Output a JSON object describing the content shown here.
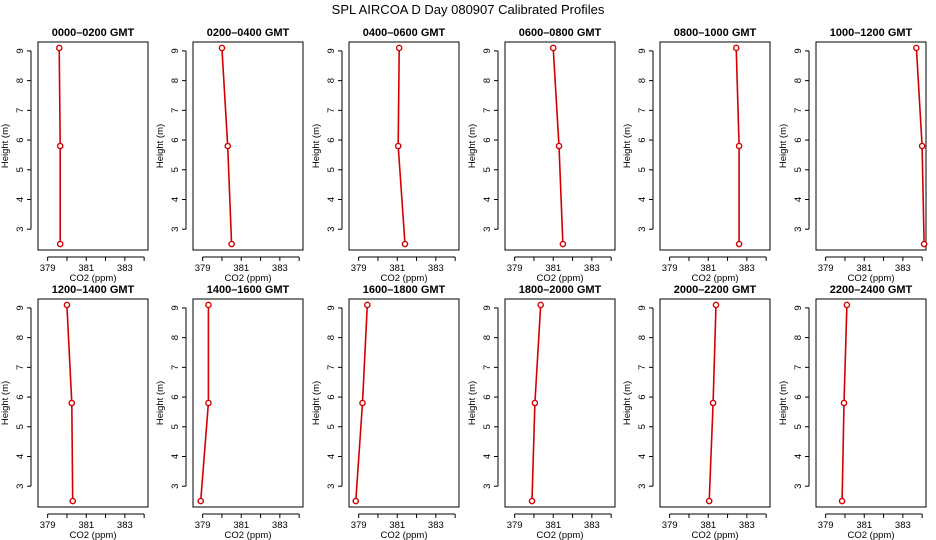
{
  "figure": {
    "title": "SPL AIRCOA D  Day 080907  Calibrated Profiles"
  },
  "colors": {
    "series": "#d40000",
    "axis": "#000000"
  },
  "chart_data": [
    {
      "type": "line",
      "title": "0000–0200 GMT",
      "xlabel": "CO2 (ppm)",
      "ylabel": "Height (m)",
      "x": [
        379.65,
        379.65,
        379.6
      ],
      "y": [
        2.5,
        5.8,
        9.1
      ]
    },
    {
      "type": "line",
      "title": "0200–0400 GMT",
      "xlabel": "CO2 (ppm)",
      "ylabel": "Height (m)",
      "x": [
        380.5,
        380.3,
        380.0
      ],
      "y": [
        2.5,
        5.8,
        9.1
      ]
    },
    {
      "type": "line",
      "title": "0400–0600 GMT",
      "xlabel": "CO2 (ppm)",
      "ylabel": "Height (m)",
      "x": [
        381.4,
        381.05,
        381.1
      ],
      "y": [
        2.5,
        5.8,
        9.1
      ]
    },
    {
      "type": "line",
      "title": "0600–0800 GMT",
      "xlabel": "CO2 (ppm)",
      "ylabel": "Height (m)",
      "x": [
        381.5,
        381.3,
        381.0
      ],
      "y": [
        2.5,
        5.8,
        9.1
      ]
    },
    {
      "type": "line",
      "title": "0800–1000 GMT",
      "xlabel": "CO2 (ppm)",
      "ylabel": "Height (m)",
      "x": [
        382.6,
        382.6,
        382.45
      ],
      "y": [
        2.5,
        5.8,
        9.1
      ]
    },
    {
      "type": "line",
      "title": "1000–1200 GMT",
      "xlabel": "CO2 (ppm)",
      "ylabel": "Height (m)",
      "x": [
        384.1,
        384.0,
        383.7
      ],
      "y": [
        2.5,
        5.8,
        9.1
      ]
    },
    {
      "type": "line",
      "title": "1200–1400 GMT",
      "xlabel": "CO2 (ppm)",
      "ylabel": "Height (m)",
      "x": [
        380.3,
        380.25,
        380.0
      ],
      "y": [
        2.5,
        5.8,
        9.1
      ]
    },
    {
      "type": "line",
      "title": "1400–1600 GMT",
      "xlabel": "CO2 (ppm)",
      "ylabel": "Height (m)",
      "x": [
        378.9,
        379.3,
        379.3
      ],
      "y": [
        2.5,
        5.8,
        9.1
      ]
    },
    {
      "type": "line",
      "title": "1600–1800 GMT",
      "xlabel": "CO2 (ppm)",
      "ylabel": "Height (m)",
      "x": [
        378.85,
        379.2,
        379.45
      ],
      "y": [
        2.5,
        5.8,
        9.1
      ]
    },
    {
      "type": "line",
      "title": "1800–2000 GMT",
      "xlabel": "CO2 (ppm)",
      "ylabel": "Height (m)",
      "x": [
        379.9,
        380.05,
        380.35
      ],
      "y": [
        2.5,
        5.8,
        9.1
      ]
    },
    {
      "type": "line",
      "title": "2000–2200 GMT",
      "xlabel": "CO2 (ppm)",
      "ylabel": "Height (m)",
      "x": [
        381.05,
        381.25,
        381.4
      ],
      "y": [
        2.5,
        5.8,
        9.1
      ]
    },
    {
      "type": "line",
      "title": "2200–2400 GMT",
      "xlabel": "CO2 (ppm)",
      "ylabel": "Height (m)",
      "x": [
        379.85,
        379.95,
        380.1
      ],
      "y": [
        2.5,
        5.8,
        9.1
      ]
    }
  ],
  "axes": {
    "xlim": [
      378.5,
      384.2
    ],
    "ylim": [
      2.3,
      9.3
    ],
    "xticks": [
      379,
      380,
      381,
      382,
      383,
      384
    ],
    "xtick_labels": [
      "379",
      "",
      "381",
      "",
      "383",
      ""
    ],
    "yticks": [
      3,
      4,
      5,
      6,
      7,
      8,
      9
    ],
    "ytick_labels": [
      "3",
      "4",
      "5",
      "6",
      "7",
      "8",
      "9"
    ]
  }
}
